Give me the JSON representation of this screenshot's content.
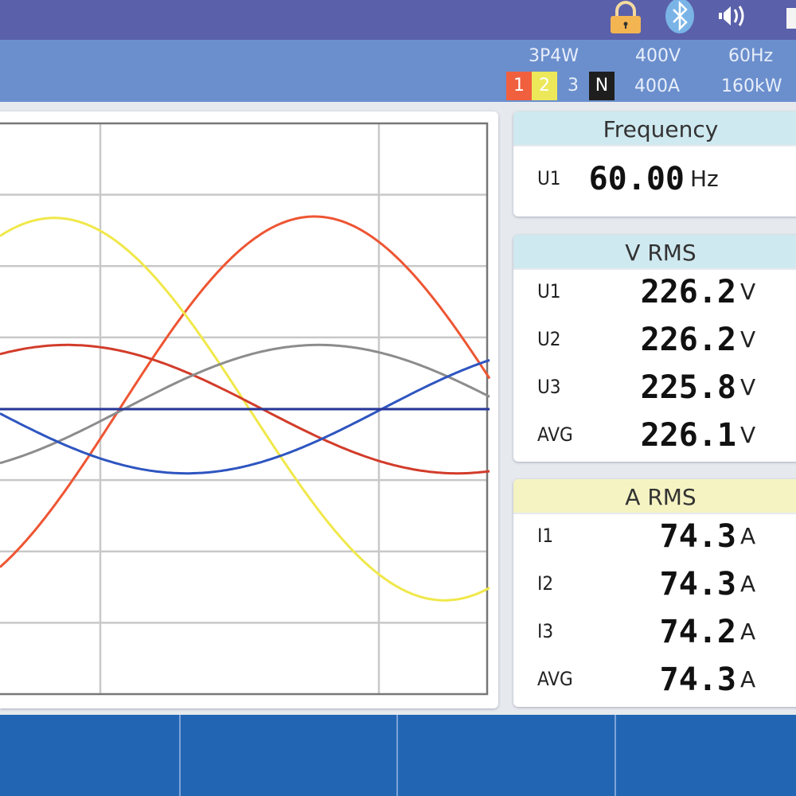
{
  "status_icons": [
    "lock-icon",
    "bluetooth-icon",
    "speaker-icon",
    "battery-icon"
  ],
  "settings": {
    "wiring": "3P4W",
    "voltage_range": "400V",
    "frequency": "60Hz",
    "current_range": "400A",
    "power_range": "160kW"
  },
  "phases": [
    {
      "label": "1",
      "color": "#f0603f"
    },
    {
      "label": "2",
      "color": "#ece85a"
    },
    {
      "label": "3",
      "color": "#6b8fcd"
    },
    {
      "label": "N",
      "color": "#1e1e1e"
    }
  ],
  "frequency": {
    "title": "Frequency",
    "rows": [
      {
        "label": "U1",
        "value": "60.00",
        "unit": "Hz"
      }
    ]
  },
  "vrms": {
    "title": "V RMS",
    "rows": [
      {
        "label": "U1",
        "value": "226.2",
        "unit": "V"
      },
      {
        "label": "U2",
        "value": "226.2",
        "unit": "V"
      },
      {
        "label": "U3",
        "value": "225.8",
        "unit": "V"
      },
      {
        "label": "AVG",
        "value": "226.1",
        "unit": "V"
      }
    ]
  },
  "arms": {
    "title": "A RMS",
    "rows": [
      {
        "label": "I1",
        "value": "74.3",
        "unit": "A"
      },
      {
        "label": "I2",
        "value": "74.3",
        "unit": "A"
      },
      {
        "label": "I3",
        "value": "74.2",
        "unit": "A"
      },
      {
        "label": "AVG",
        "value": "74.3",
        "unit": "A"
      }
    ]
  },
  "chart_data": {
    "type": "line",
    "grid": true,
    "y_divisions": 8,
    "series": [
      {
        "color": "#ee5533",
        "amplitude_div": 2.7,
        "phase_deg": 0
      },
      {
        "color": "#f0e84a",
        "amplitude_div": 2.68,
        "phase_deg": -120
      },
      {
        "color": "#d23c2a",
        "amplitude_div": 0.9,
        "phase_deg": -114
      },
      {
        "color": "#8c8c8c",
        "amplitude_div": 0.9,
        "phase_deg": 2
      },
      {
        "color": "#2e55c0",
        "amplitude_div": 0.9,
        "phase_deg": 121
      },
      {
        "color": "#27379a",
        "amplitude_div": 0,
        "phase_deg": 0
      }
    ]
  }
}
